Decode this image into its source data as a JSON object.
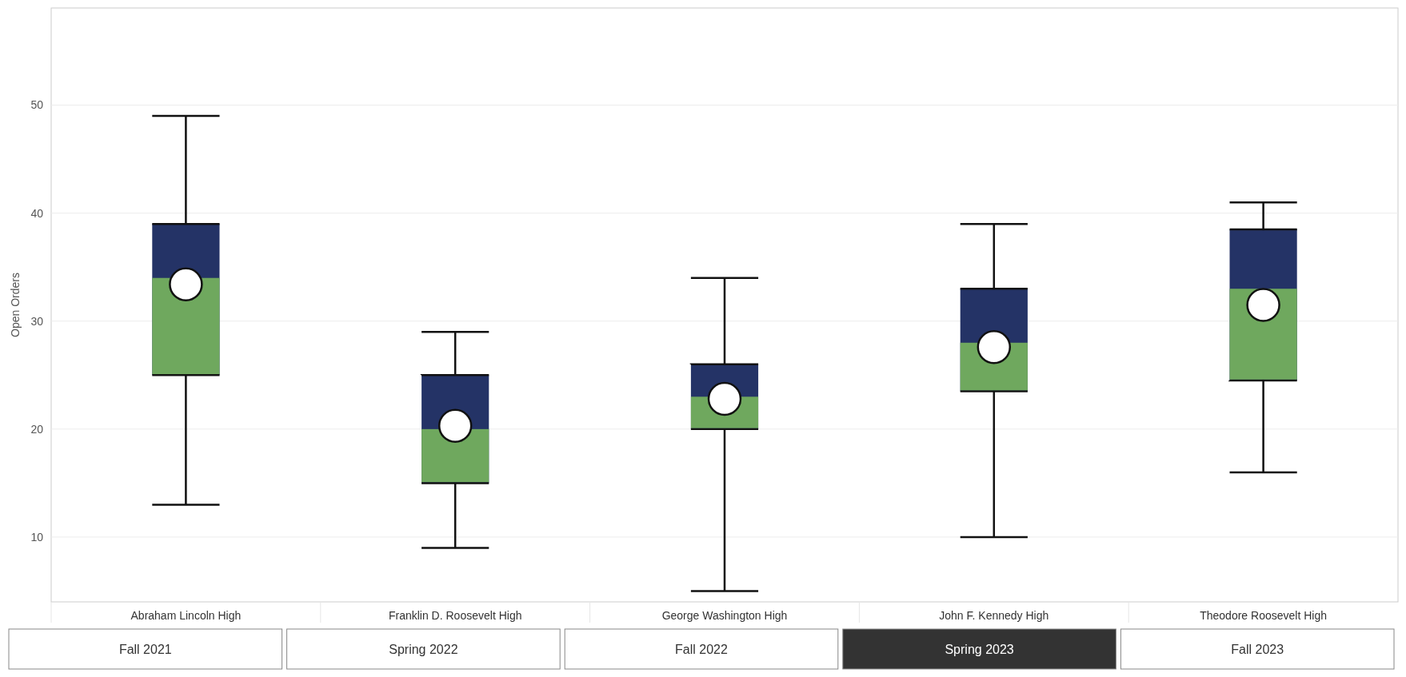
{
  "chart_data": {
    "type": "box",
    "ylabel": "Open Orders",
    "categories": [
      "Abraham Lincoln High",
      "Franklin D. Roosevelt High",
      "George Washington High",
      "John F. Kennedy High",
      "Theodore Roosevelt High"
    ],
    "series": [
      {
        "color": "#243366",
        "boxes": [
          {
            "low": 13,
            "q1": 25,
            "median": 34,
            "q3": 39,
            "high": 49,
            "mean": 33.4
          },
          {
            "low": 9,
            "q1": 15,
            "median": 20,
            "q3": 25,
            "high": 29,
            "mean": 20.3
          },
          {
            "low": 5,
            "q1": 20,
            "median": 23,
            "q3": 26,
            "high": 34,
            "mean": 22.8
          },
          {
            "low": 10,
            "q1": 23.5,
            "median": 28,
            "q3": 33,
            "high": 39,
            "mean": 27.6
          },
          {
            "low": 16,
            "q1": 24.5,
            "median": 33,
            "q3": 38.5,
            "high": 41,
            "mean": 31.5
          }
        ]
      }
    ],
    "colors": [
      "#6fa85e",
      "#6fa85e",
      "#6fa85e",
      "#6fa85e",
      "#6fa85e"
    ],
    "ylim": [
      4,
      59
    ],
    "yticks": [
      10,
      20,
      30,
      40,
      50
    ],
    "grid": "y",
    "annotations": [
      "Fall 2021",
      "Spring 2022",
      "Fall 2022",
      "Spring 2023",
      "Fall 2023"
    ]
  }
}
